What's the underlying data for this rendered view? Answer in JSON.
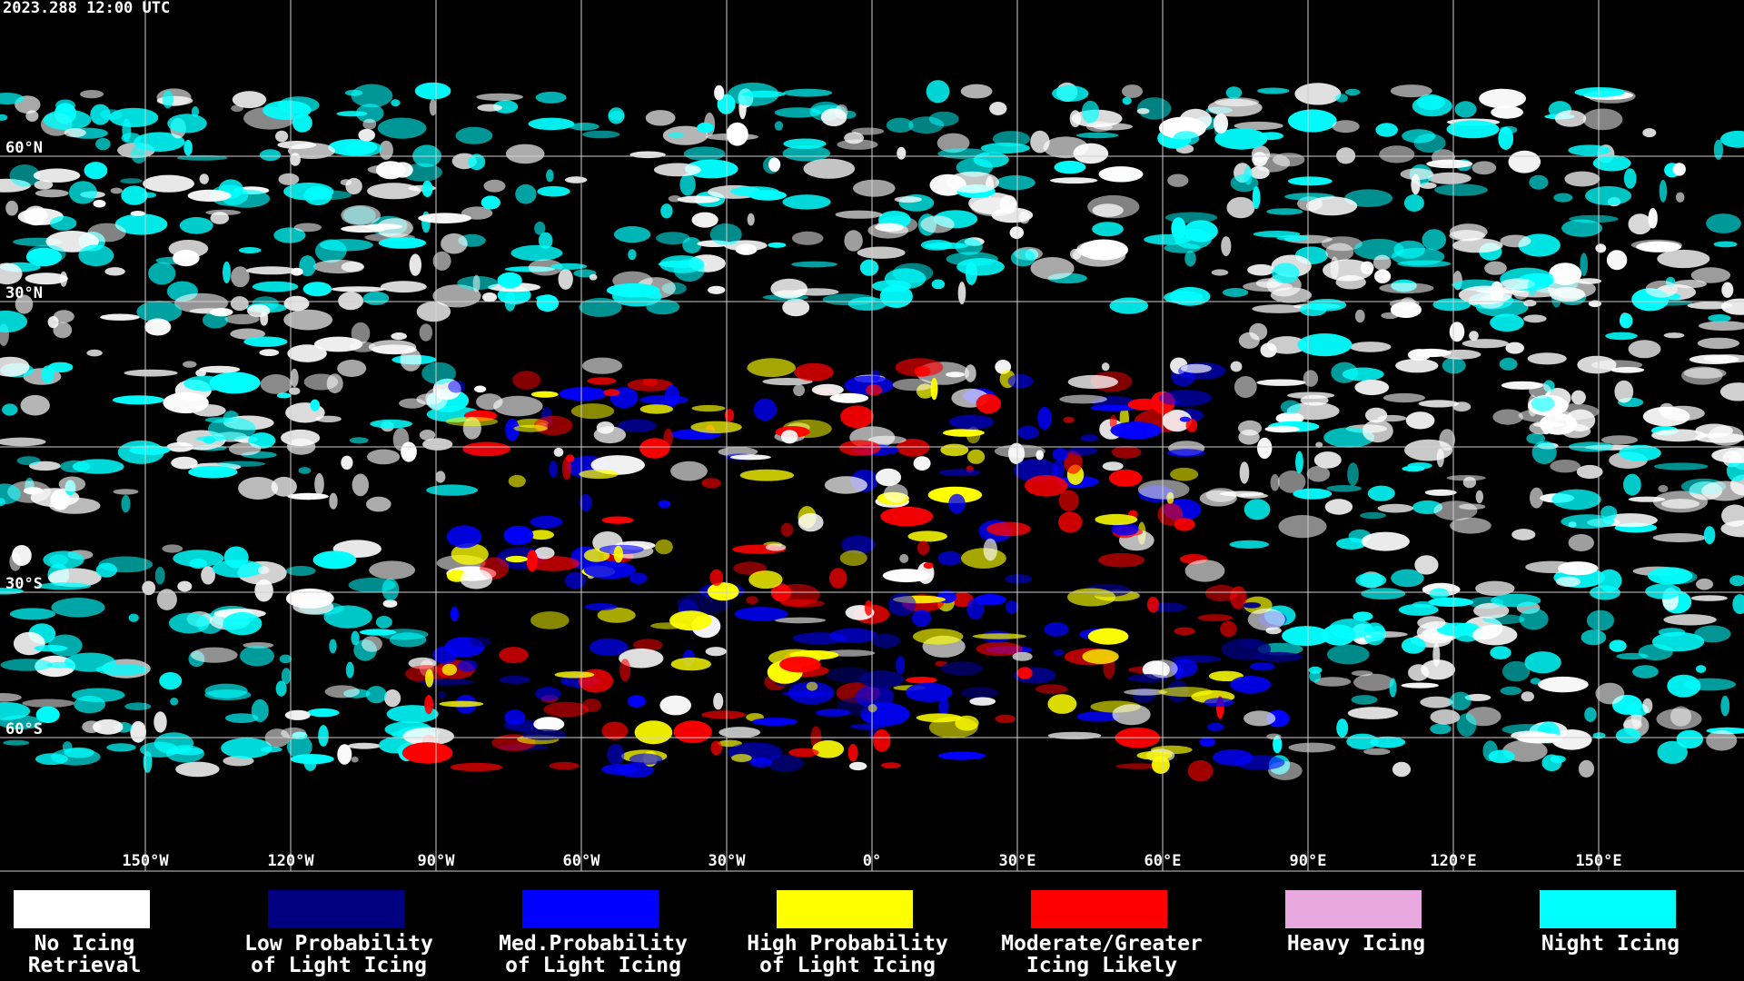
{
  "header": {
    "timestamp": "2023.288 12:00 UTC"
  },
  "map": {
    "longitudes": [
      {
        "value": -150,
        "label": "150°W"
      },
      {
        "value": -120,
        "label": "120°W"
      },
      {
        "value": -90,
        "label": "90°W"
      },
      {
        "value": -60,
        "label": "60°W"
      },
      {
        "value": -30,
        "label": "30°W"
      },
      {
        "value": 0,
        "label": "0°"
      },
      {
        "value": 30,
        "label": "30°E"
      },
      {
        "value": 60,
        "label": "60°E"
      },
      {
        "value": 90,
        "label": "90°E"
      },
      {
        "value": 120,
        "label": "120°E"
      },
      {
        "value": 150,
        "label": "150°E"
      }
    ],
    "latitudes": [
      {
        "value": 60,
        "label": "60°N"
      },
      {
        "value": 30,
        "label": "30°N"
      },
      {
        "value": 0
      },
      {
        "value": -30,
        "label": "30°S"
      },
      {
        "value": -60,
        "label": "60°S"
      }
    ]
  },
  "legend": {
    "items": [
      {
        "lines": [
          "No Icing",
          "Retrieval"
        ],
        "color": "#ffffff"
      },
      {
        "lines": [
          "Low Probability",
          "of Light Icing"
        ],
        "color": "#000080"
      },
      {
        "lines": [
          "Med.Probability",
          "of Light Icing"
        ],
        "color": "#0000ff"
      },
      {
        "lines": [
          "High Probability",
          "of Light Icing"
        ],
        "color": "#ffff00"
      },
      {
        "lines": [
          "Moderate/Greater",
          "Icing Likely"
        ],
        "color": "#ff0000"
      },
      {
        "lines": [
          "Heavy Icing"
        ],
        "color": "#e8a8e0"
      },
      {
        "lines": [
          "Night Icing"
        ],
        "color": "#00ffff"
      }
    ]
  }
}
